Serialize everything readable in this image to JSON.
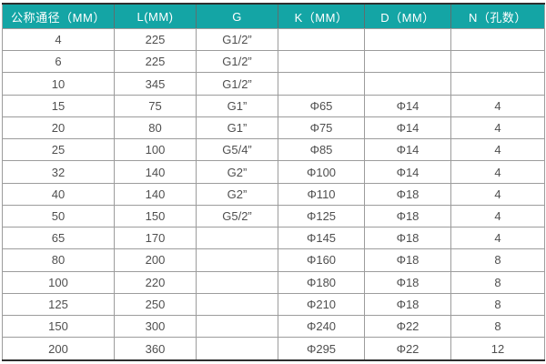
{
  "table": {
    "title": "flange-spec-table",
    "headers": [
      "公称通径（MM）",
      "L(MM)",
      "G",
      "K（MM）",
      "D（MM）",
      "N（孔数）"
    ],
    "rows": [
      [
        "4",
        "225",
        "G1/2”",
        "",
        "",
        ""
      ],
      [
        "6",
        "225",
        "G1/2”",
        "",
        "",
        ""
      ],
      [
        "10",
        "345",
        "G1/2”",
        "",
        "",
        ""
      ],
      [
        "15",
        "75",
        "G1”",
        "Φ65",
        "Φ14",
        "4"
      ],
      [
        "20",
        "80",
        "G1”",
        "Φ75",
        "Φ14",
        "4"
      ],
      [
        "25",
        "100",
        "G5/4”",
        "Φ85",
        "Φ14",
        "4"
      ],
      [
        "32",
        "140",
        "G2”",
        "Φ100",
        "Φ14",
        "4"
      ],
      [
        "40",
        "140",
        "G2”",
        "Φ110",
        "Φ18",
        "4"
      ],
      [
        "50",
        "150",
        "G5/2”",
        "Φ125",
        "Φ18",
        "4"
      ],
      [
        "65",
        "170",
        "",
        "Φ145",
        "Φ18",
        "4"
      ],
      [
        "80",
        "200",
        "",
        "Φ160",
        "Φ18",
        "8"
      ],
      [
        "100",
        "220",
        "",
        "Φ180",
        "Φ18",
        "8"
      ],
      [
        "125",
        "250",
        "",
        "Φ210",
        "Φ18",
        "8"
      ],
      [
        "150",
        "300",
        "",
        "Φ240",
        "Φ22",
        "8"
      ],
      [
        "200",
        "360",
        "",
        "Φ295",
        "Φ22",
        "12"
      ]
    ],
    "colors": {
      "header_bg": "#14a5a5",
      "header_text": "#ffffff",
      "body_text": "#4f4f4f",
      "grid_line": "#9c9c9c",
      "outer_border": "#2e2e2e"
    }
  }
}
